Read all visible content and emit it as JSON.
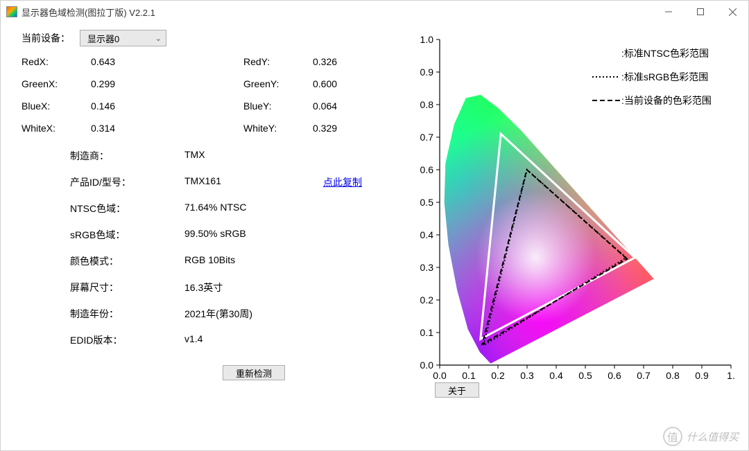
{
  "window": {
    "title": "显示器色域检测(图拉丁版) V2.2.1"
  },
  "device": {
    "label": "当前设备：",
    "selected": "显示器0"
  },
  "coords": {
    "redx_label": "RedX:",
    "redx_value": "0.643",
    "redy_label": "RedY:",
    "redy_value": "0.326",
    "greenx_label": "GreenX:",
    "greenx_value": "0.299",
    "greeny_label": "GreenY:",
    "greeny_value": "0.600",
    "bluex_label": "BlueX:",
    "bluex_value": "0.146",
    "bluey_label": "BlueY:",
    "bluey_value": "0.064",
    "whitex_label": "WhiteX:",
    "whitex_value": "0.314",
    "whitey_label": "WhiteY:",
    "whitey_value": "0.329"
  },
  "info": {
    "maker_label": "制造商：",
    "maker_value": "TMX",
    "pid_label": "产品ID/型号：",
    "pid_value": "TMX161",
    "copy_link": "点此复制",
    "ntsc_label": "NTSC色域：",
    "ntsc_value": "71.64% NTSC",
    "srgb_label": "sRGB色域：",
    "srgb_value": "99.50% sRGB",
    "color_label": "颜色模式：",
    "color_value": "RGB 10Bits",
    "size_label": "屏幕尺寸：",
    "size_value": "16.3英寸",
    "year_label": "制造年份：",
    "year_value": "2021年(第30周)",
    "edid_label": "EDID版本：",
    "edid_value": "v1.4"
  },
  "buttons": {
    "redetect": "重新检测",
    "about": "关于"
  },
  "chart": {
    "xlim": [
      0.0,
      1.0
    ],
    "ylim": [
      0.0,
      1.0
    ],
    "tick_step": 0.1,
    "tick_labels_y": [
      "0.0",
      "0.1",
      "0.2",
      "0.3",
      "0.4",
      "0.5",
      "0.6",
      "0.7",
      "0.8",
      "0.9",
      "1.0"
    ],
    "tick_labels_x": [
      "0.0",
      "0.1",
      "0.2",
      "0.3",
      "0.4",
      "0.5",
      "0.6",
      "0.7",
      "0.8",
      "0.9",
      "1."
    ],
    "axis_color": "#000000",
    "tick_fontsize": 14,
    "legend": {
      "ntsc": {
        "text": ":标准NTSC色彩范围",
        "style": "solid",
        "color": "#ffffff"
      },
      "srgb": {
        "text": ":标准sRGB色彩范围",
        "style": "dotted",
        "color": "#000000"
      },
      "device": {
        "text": ":当前设备的色彩范围",
        "style": "dashed",
        "color": "#000000"
      }
    },
    "ntsc_triangle": {
      "points": [
        [
          0.67,
          0.33
        ],
        [
          0.21,
          0.71
        ],
        [
          0.14,
          0.08
        ]
      ],
      "stroke": "#ffffff",
      "width": 3,
      "dash": "none"
    },
    "srgb_triangle": {
      "points": [
        [
          0.64,
          0.33
        ],
        [
          0.3,
          0.6
        ],
        [
          0.15,
          0.06
        ]
      ],
      "stroke": "#000000",
      "width": 2,
      "dash": "2,3"
    },
    "device_triangle": {
      "points": [
        [
          0.643,
          0.326
        ],
        [
          0.299,
          0.6
        ],
        [
          0.146,
          0.064
        ]
      ],
      "stroke": "#000000",
      "width": 2,
      "dash": "7,4"
    },
    "locus_outline": [
      [
        0.175,
        0.005
      ],
      [
        0.138,
        0.04
      ],
      [
        0.097,
        0.11
      ],
      [
        0.06,
        0.23
      ],
      [
        0.03,
        0.37
      ],
      [
        0.016,
        0.5
      ],
      [
        0.02,
        0.62
      ],
      [
        0.05,
        0.74
      ],
      [
        0.09,
        0.82
      ],
      [
        0.14,
        0.83
      ],
      [
        0.2,
        0.79
      ],
      [
        0.28,
        0.72
      ],
      [
        0.38,
        0.62
      ],
      [
        0.48,
        0.52
      ],
      [
        0.57,
        0.43
      ],
      [
        0.65,
        0.35
      ],
      [
        0.72,
        0.28
      ],
      [
        0.735,
        0.265
      ],
      [
        0.175,
        0.005
      ]
    ]
  },
  "watermark": {
    "text": "什么值得买"
  }
}
